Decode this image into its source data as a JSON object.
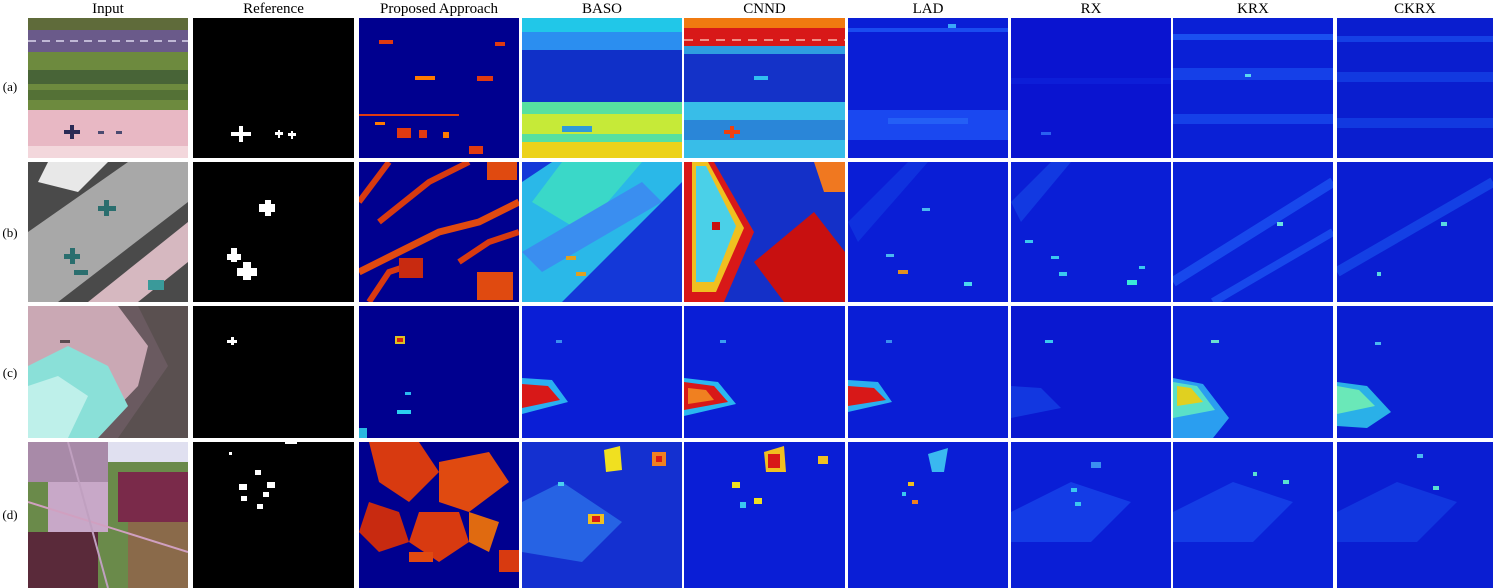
{
  "columns": [
    "Input",
    "Reference",
    "Proposed Approach",
    "BASO",
    "CNND",
    "LAD",
    "RX",
    "KRX",
    "CKRX"
  ],
  "rows": [
    "(a)",
    "(b)",
    "(c)",
    "(d)"
  ]
}
